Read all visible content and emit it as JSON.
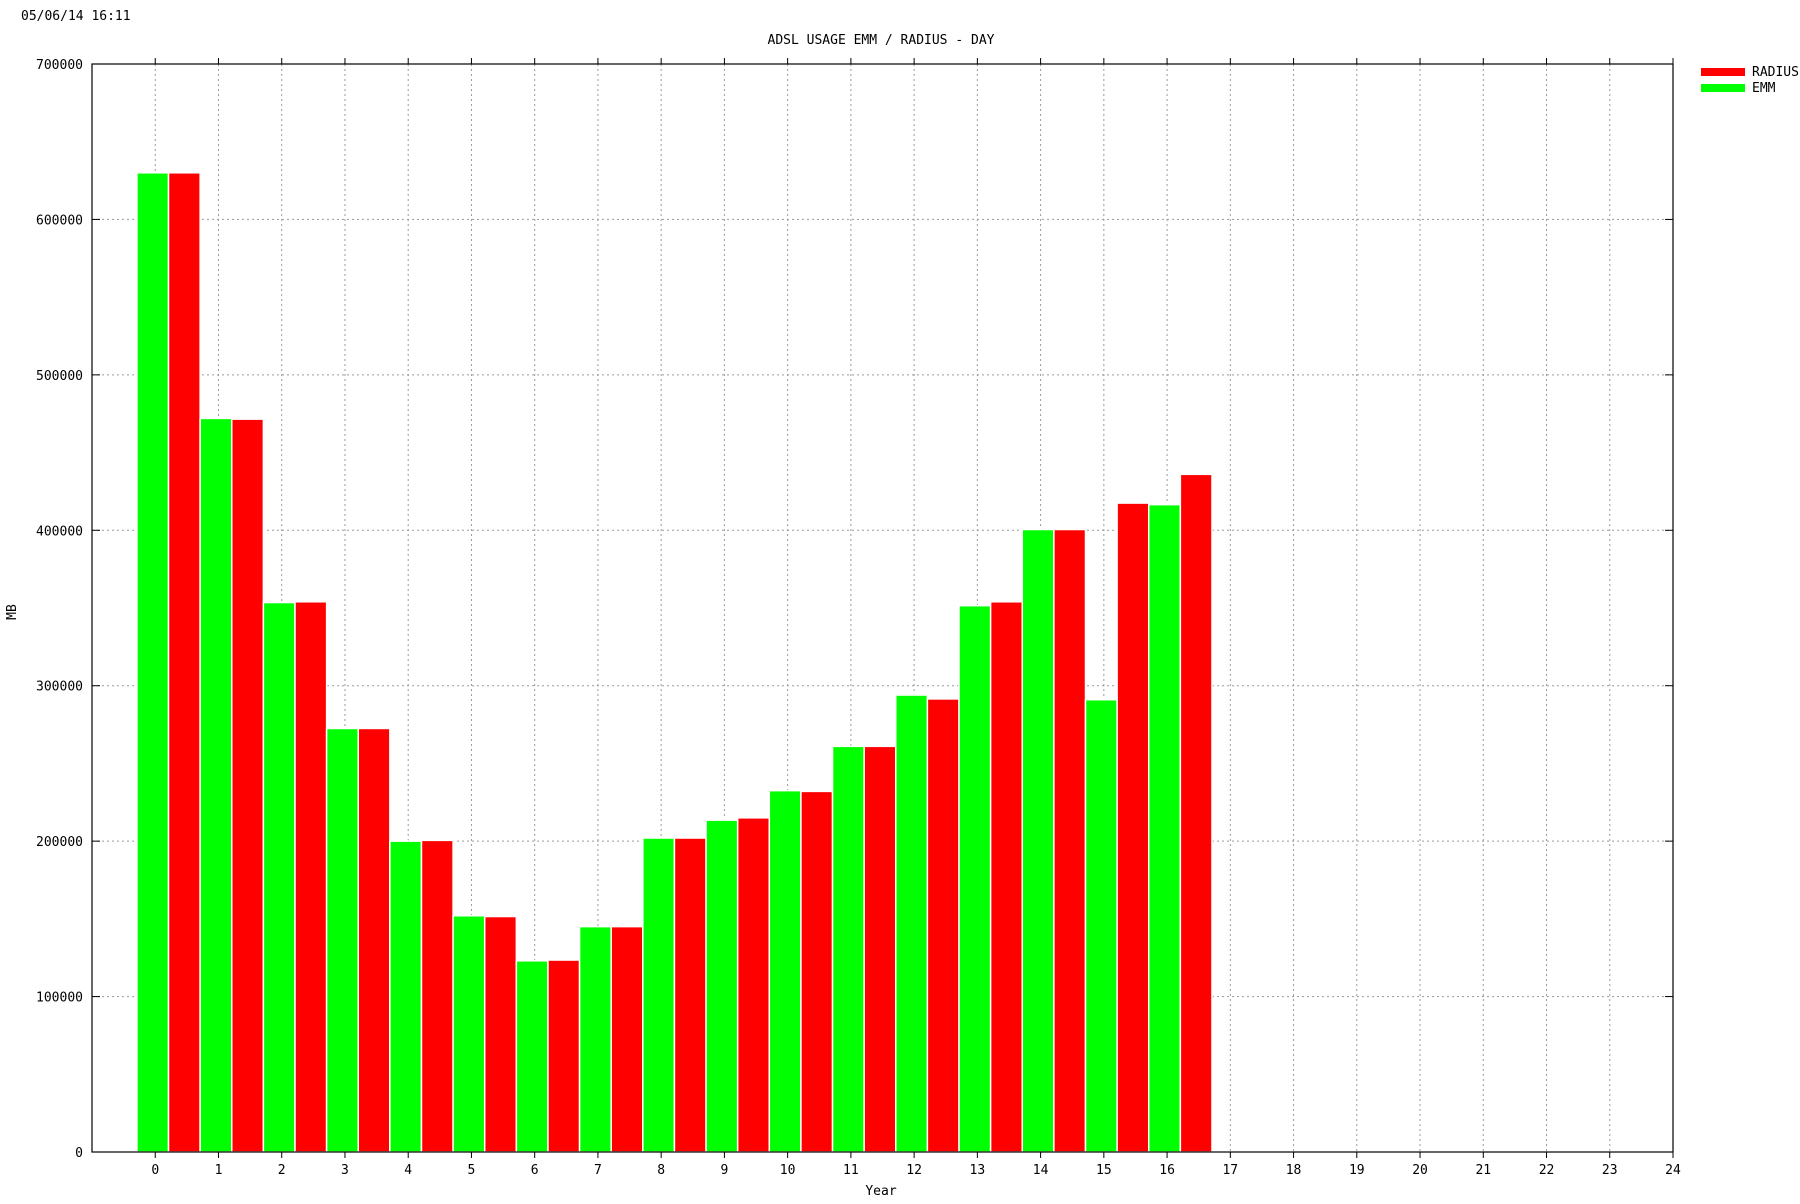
{
  "timestamp": "05/06/14 16:11",
  "chart_data": {
    "type": "bar",
    "title": "ADSL USAGE EMM / RADIUS - DAY",
    "xlabel": "Year",
    "ylabel": "MB",
    "xlim": [
      -1,
      24
    ],
    "ylim": [
      0,
      700000
    ],
    "x_ticks": [
      "0",
      "1",
      "2",
      "3",
      "4",
      "5",
      "6",
      "7",
      "8",
      "9",
      "10",
      "11",
      "12",
      "13",
      "14",
      "15",
      "16",
      "17",
      "18",
      "19",
      "20",
      "21",
      "22",
      "23",
      "24"
    ],
    "y_ticks": [
      "0",
      "100000",
      "200000",
      "300000",
      "400000",
      "500000",
      "600000",
      "700000"
    ],
    "grid": true,
    "legend_position": "top-right outside",
    "colors": {
      "RADIUS": "#ff0000",
      "EMM": "#00ff00"
    },
    "bars": [
      {
        "series": "EMM",
        "x": -0.04,
        "value": 630000
      },
      {
        "series": "RADIUS",
        "x": 0.46,
        "value": 630000
      },
      {
        "series": "EMM",
        "x": 0.96,
        "value": 472000
      },
      {
        "series": "RADIUS",
        "x": 1.46,
        "value": 471500
      },
      {
        "series": "EMM",
        "x": 1.96,
        "value": 353500
      },
      {
        "series": "RADIUS",
        "x": 2.46,
        "value": 354000
      },
      {
        "series": "EMM",
        "x": 2.96,
        "value": 272500
      },
      {
        "series": "RADIUS",
        "x": 3.46,
        "value": 272500
      },
      {
        "series": "EMM",
        "x": 3.96,
        "value": 200000
      },
      {
        "series": "RADIUS",
        "x": 4.46,
        "value": 200500
      },
      {
        "series": "EMM",
        "x": 4.96,
        "value": 152000
      },
      {
        "series": "RADIUS",
        "x": 5.46,
        "value": 151500
      },
      {
        "series": "EMM",
        "x": 5.96,
        "value": 123000
      },
      {
        "series": "RADIUS",
        "x": 6.46,
        "value": 123500
      },
      {
        "series": "EMM",
        "x": 6.96,
        "value": 145000
      },
      {
        "series": "RADIUS",
        "x": 7.46,
        "value": 145000
      },
      {
        "series": "EMM",
        "x": 7.96,
        "value": 202000
      },
      {
        "series": "RADIUS",
        "x": 8.46,
        "value": 202000
      },
      {
        "series": "EMM",
        "x": 8.96,
        "value": 213500
      },
      {
        "series": "RADIUS",
        "x": 9.46,
        "value": 215000
      },
      {
        "series": "EMM",
        "x": 9.96,
        "value": 232500
      },
      {
        "series": "RADIUS",
        "x": 10.46,
        "value": 232000
      },
      {
        "series": "EMM",
        "x": 10.96,
        "value": 261000
      },
      {
        "series": "RADIUS",
        "x": 11.46,
        "value": 261000
      },
      {
        "series": "EMM",
        "x": 11.96,
        "value": 294000
      },
      {
        "series": "RADIUS",
        "x": 12.46,
        "value": 291500
      },
      {
        "series": "EMM",
        "x": 12.96,
        "value": 351500
      },
      {
        "series": "RADIUS",
        "x": 13.46,
        "value": 354000
      },
      {
        "series": "EMM",
        "x": 13.96,
        "value": 400500
      },
      {
        "series": "RADIUS",
        "x": 14.46,
        "value": 400500
      },
      {
        "series": "EMM",
        "x": 14.96,
        "value": 291000
      },
      {
        "series": "RADIUS",
        "x": 15.46,
        "value": 417500
      },
      {
        "series": "EMM",
        "x": 15.96,
        "value": 416500
      },
      {
        "series": "RADIUS",
        "x": 16.46,
        "value": 436000
      }
    ],
    "legend": [
      {
        "name": "RADIUS",
        "color": "#ff0000"
      },
      {
        "name": "EMM",
        "color": "#00ff00"
      }
    ]
  }
}
